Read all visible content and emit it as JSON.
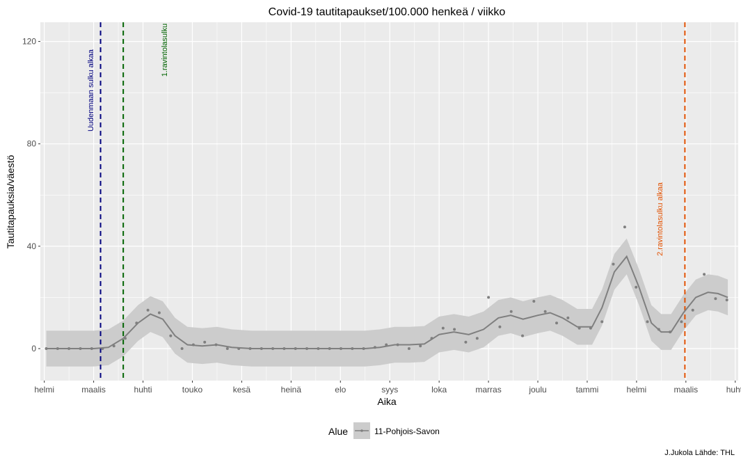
{
  "chart_data": {
    "type": "line",
    "title": "Covid-19 tautitapaukset/100.000 henkeä / viikko",
    "xlabel": "Aika",
    "ylabel": "Tautitapauksia/väestö",
    "caption": "J.Jukola  Lähde: THL",
    "legend": {
      "title": "Alue",
      "position": "bottom",
      "entries": [
        "11-Pohjois-Savon"
      ]
    },
    "x_ticks": [
      "helmi",
      "maalis",
      "huhti",
      "touko",
      "kesä",
      "heinä",
      "elo",
      "syys",
      "loka",
      "marras",
      "joulu",
      "tammi",
      "helmi",
      "maalis",
      "huhti"
    ],
    "y_ticks": [
      0,
      40,
      80,
      120
    ],
    "xlim": [
      -0.08,
      14.06
    ],
    "ylim": [
      -12.5,
      127.5
    ],
    "grid": true,
    "vlines": [
      {
        "x": 1.14,
        "color": "#00007f",
        "label": "Uudenmaan sulku alkaa"
      },
      {
        "x": 1.6,
        "color": "#006400",
        "label": "1.ravintolasulku"
      },
      {
        "x": 12.98,
        "color": "#e05000",
        "label": "2.ravintolasulku alkaa"
      }
    ],
    "series": [
      {
        "name": "11-Pohjois-Savon",
        "points": [
          [
            0.04,
            0
          ],
          [
            0.27,
            0
          ],
          [
            0.5,
            0
          ],
          [
            0.73,
            0
          ],
          [
            0.96,
            0
          ],
          [
            1.18,
            0
          ],
          [
            1.41,
            1
          ],
          [
            1.64,
            4
          ],
          [
            1.87,
            10
          ],
          [
            2.1,
            15
          ],
          [
            2.33,
            14
          ],
          [
            2.56,
            5
          ],
          [
            2.79,
            0
          ],
          [
            3.02,
            1.5
          ],
          [
            3.25,
            2.5
          ],
          [
            3.48,
            1.5
          ],
          [
            3.71,
            0
          ],
          [
            3.94,
            0
          ],
          [
            4.17,
            0
          ],
          [
            4.4,
            0
          ],
          [
            4.63,
            0
          ],
          [
            4.86,
            0
          ],
          [
            5.09,
            0
          ],
          [
            5.32,
            0
          ],
          [
            5.55,
            0
          ],
          [
            5.78,
            0
          ],
          [
            6.01,
            0
          ],
          [
            6.24,
            0
          ],
          [
            6.47,
            0
          ],
          [
            6.7,
            0.5
          ],
          [
            6.93,
            1.5
          ],
          [
            7.16,
            1.5
          ],
          [
            7.39,
            0
          ],
          [
            7.62,
            1
          ],
          [
            7.85,
            4
          ],
          [
            8.08,
            8
          ],
          [
            8.31,
            7.5
          ],
          [
            8.54,
            2.5
          ],
          [
            8.77,
            4
          ],
          [
            9.0,
            20
          ],
          [
            9.23,
            8.5
          ],
          [
            9.46,
            14.5
          ],
          [
            9.69,
            5
          ],
          [
            9.92,
            18.5
          ],
          [
            10.15,
            14.5
          ],
          [
            10.38,
            10
          ],
          [
            10.61,
            12
          ],
          [
            10.84,
            8
          ],
          [
            11.07,
            8
          ],
          [
            11.3,
            10.5
          ],
          [
            11.53,
            33
          ],
          [
            11.76,
            47.5
          ],
          [
            11.99,
            24
          ],
          [
            12.22,
            10.5
          ],
          [
            12.45,
            7.5
          ],
          [
            12.68,
            6.5
          ],
          [
            12.91,
            10.5
          ],
          [
            13.14,
            15
          ],
          [
            13.37,
            29
          ],
          [
            13.6,
            19.5
          ],
          [
            13.83,
            19
          ]
        ],
        "trend": [
          [
            0.04,
            0
          ],
          [
            0.5,
            0
          ],
          [
            1.0,
            0
          ],
          [
            1.3,
            0.5
          ],
          [
            1.6,
            4
          ],
          [
            1.9,
            10
          ],
          [
            2.15,
            13.5
          ],
          [
            2.4,
            11.5
          ],
          [
            2.65,
            5
          ],
          [
            2.9,
            1.5
          ],
          [
            3.2,
            1
          ],
          [
            3.5,
            1.5
          ],
          [
            3.8,
            0.5
          ],
          [
            4.2,
            0
          ],
          [
            5.0,
            0
          ],
          [
            6.0,
            0
          ],
          [
            6.5,
            0
          ],
          [
            6.8,
            0.5
          ],
          [
            7.1,
            1.5
          ],
          [
            7.4,
            1.5
          ],
          [
            7.7,
            1.8
          ],
          [
            8.0,
            5.5
          ],
          [
            8.3,
            6.5
          ],
          [
            8.6,
            5.5
          ],
          [
            8.9,
            7.5
          ],
          [
            9.2,
            12
          ],
          [
            9.45,
            13
          ],
          [
            9.7,
            11.5
          ],
          [
            10.0,
            13
          ],
          [
            10.25,
            14
          ],
          [
            10.5,
            12
          ],
          [
            10.8,
            8.5
          ],
          [
            11.1,
            8.5
          ],
          [
            11.3,
            16
          ],
          [
            11.55,
            30
          ],
          [
            11.8,
            36
          ],
          [
            12.05,
            24
          ],
          [
            12.3,
            10
          ],
          [
            12.5,
            6.5
          ],
          [
            12.7,
            6.5
          ],
          [
            12.95,
            14
          ],
          [
            13.2,
            20
          ],
          [
            13.45,
            22
          ],
          [
            13.65,
            21.5
          ],
          [
            13.85,
            20
          ]
        ],
        "band": 7
      }
    ]
  }
}
